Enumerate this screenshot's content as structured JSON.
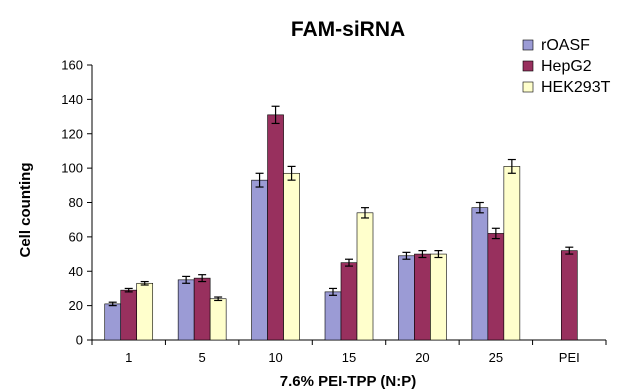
{
  "chart_data": {
    "type": "bar",
    "title": "FAM-siRNA",
    "xlabel": "7.6% PEI-TPP (N:P)",
    "ylabel": "Cell counting",
    "ylim": [
      0,
      160
    ],
    "yticks": [
      0,
      20,
      40,
      60,
      80,
      100,
      120,
      140,
      160
    ],
    "categories": [
      "1",
      "5",
      "10",
      "15",
      "20",
      "25",
      "PEI"
    ],
    "series": [
      {
        "name": "rOASF",
        "color": "#9b9bd5",
        "values": [
          21,
          35,
          93,
          28,
          49,
          77,
          null
        ],
        "errors": [
          1,
          2,
          4,
          2,
          2,
          3,
          null
        ]
      },
      {
        "name": "HepG2",
        "color": "#98305e",
        "values": [
          29,
          36,
          131,
          45,
          50,
          62,
          52
        ],
        "errors": [
          1,
          2,
          5,
          2,
          2,
          3,
          2
        ]
      },
      {
        "name": "HEK293T",
        "color": "#ffffcc",
        "values": [
          33,
          24,
          97,
          74,
          50,
          101,
          null
        ],
        "errors": [
          1,
          1,
          4,
          3,
          2,
          4,
          null
        ]
      }
    ],
    "legend_position": "top-right",
    "grid": false
  }
}
